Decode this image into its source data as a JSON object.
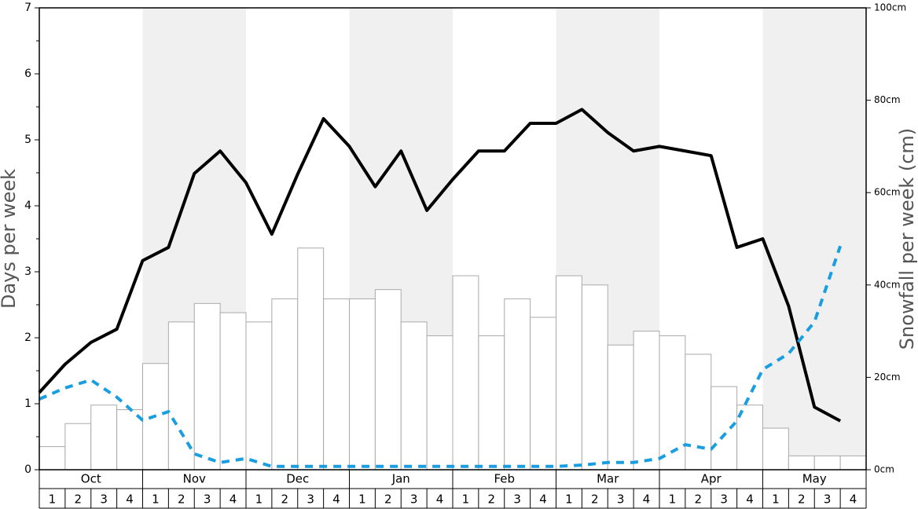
{
  "chart_data": {
    "type": "bar-line",
    "y_label": "Days per week",
    "y2_label": "Snowfall per week (cm)",
    "months": [
      "Oct",
      "Nov",
      "Dec",
      "Jan",
      "Feb",
      "Mar",
      "Apr",
      "May"
    ],
    "weeks": [
      "1",
      "2",
      "3",
      "4"
    ],
    "ylim": [
      0,
      7
    ],
    "yticks": [
      0,
      1,
      2,
      3,
      4,
      5,
      6,
      7
    ],
    "y2lim": [
      0,
      100
    ],
    "y2ticks": [
      {
        "value": 0,
        "label": "0cm"
      },
      {
        "value": 20,
        "label": "20cm"
      },
      {
        "value": 40,
        "label": "40cm"
      },
      {
        "value": 60,
        "label": "60cm"
      },
      {
        "value": 80,
        "label": "80cm"
      },
      {
        "value": 100,
        "label": "100cm"
      }
    ],
    "series": [
      {
        "type": "bar",
        "axis": "y2",
        "color": "#ffffff",
        "values": [
          5,
          10,
          14,
          13,
          23,
          32,
          36,
          34,
          32,
          37,
          48,
          37,
          37,
          39,
          32,
          29,
          42,
          29,
          37,
          33,
          42,
          40,
          27,
          30,
          29,
          25,
          18,
          14,
          9,
          3,
          3,
          3
        ]
      },
      {
        "type": "line",
        "color": "#000000",
        "values": [
          1.17,
          1.6,
          1.93,
          2.13,
          3.17,
          3.37,
          4.49,
          4.83,
          4.35,
          3.57,
          4.48,
          5.32,
          4.9,
          4.29,
          4.83,
          3.93,
          4.4,
          4.83,
          4.83,
          5.25,
          5.25,
          5.46,
          5.11,
          4.83,
          4.9,
          4.83,
          4.76,
          3.37,
          3.5,
          2.48,
          0.95,
          0.74
        ]
      },
      {
        "type": "line",
        "dashed": true,
        "color": "#1a9ee0",
        "values": [
          1.07,
          1.24,
          1.36,
          1.1,
          0.75,
          0.88,
          0.24,
          0.11,
          0.17,
          0.05,
          0.05,
          0.05,
          0.05,
          0.05,
          0.05,
          0.05,
          0.05,
          0.05,
          0.05,
          0.05,
          0.05,
          0.07,
          0.11,
          0.11,
          0.17,
          0.38,
          0.31,
          0.74,
          1.52,
          1.76,
          2.24,
          3.39
        ]
      }
    ]
  }
}
